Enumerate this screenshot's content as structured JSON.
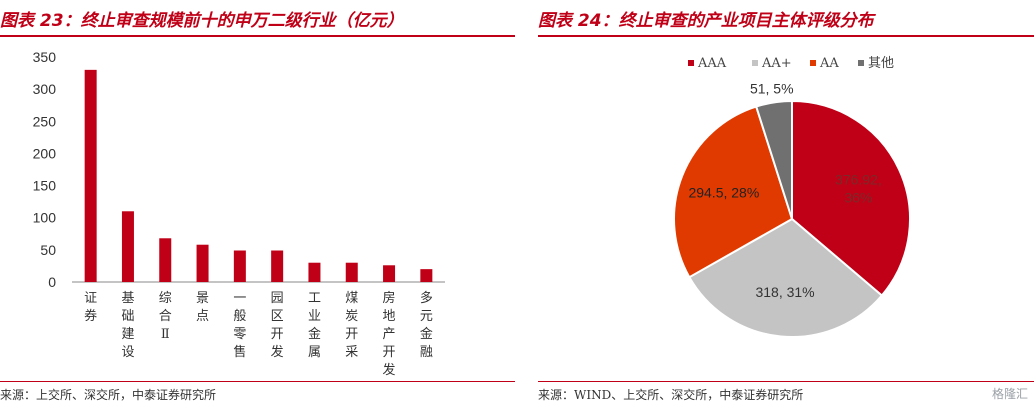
{
  "left": {
    "title": "图表 23：终止审查规模前十的申万二级行业（亿元）",
    "source": "来源：上交所、深交所，中泰证券研究所",
    "chart_data": {
      "type": "bar",
      "categories": [
        "证券",
        "基础建设",
        "综合Ⅱ",
        "景点",
        "一般零售",
        "园区开发",
        "工业金属",
        "煤炭开采",
        "房地产开发",
        "多元金融"
      ],
      "values": [
        330,
        110,
        68,
        58,
        49,
        49,
        30,
        30,
        26,
        20
      ],
      "ylim": [
        0,
        350
      ],
      "yticks": [
        0,
        50,
        100,
        150,
        200,
        250,
        300,
        350
      ],
      "bar_color": "#c00017",
      "title": "",
      "xlabel": "",
      "ylabel": ""
    }
  },
  "right": {
    "title": "图表 24：终止审查的产业项目主体评级分布",
    "source": "来源：WIND、上交所、深交所，中泰证券研究所",
    "chart_data": {
      "type": "pie",
      "slices": [
        {
          "name": "AAA",
          "value": 376.92,
          "percent": 36,
          "label": "376.92, 36%",
          "color": "#c00017",
          "text_color": "#7a2a2a"
        },
        {
          "name": "AA+",
          "value": 318,
          "percent": 31,
          "label": "318, 31%",
          "color": "#c4c4c4",
          "text_color": "#333333"
        },
        {
          "name": "AA",
          "value": 294.5,
          "percent": 28,
          "label": "294.5, 28%",
          "color": "#e03a00",
          "text_color": "#222222"
        },
        {
          "name": "其他",
          "value": 51,
          "percent": 5,
          "label": "51, 5%",
          "color": "#707070",
          "text_color": "#333333"
        }
      ],
      "legend_position": "top"
    }
  },
  "watermark": "格隆汇"
}
